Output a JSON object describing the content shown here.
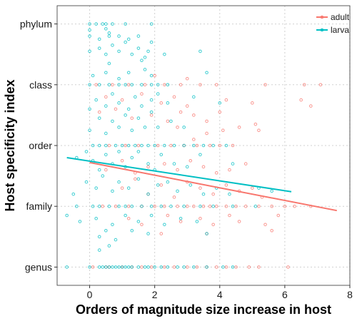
{
  "chart_data": {
    "type": "scatter",
    "title": "",
    "xlabel": "Orders of magnitude size increase in host",
    "ylabel": "Host specificity index",
    "xlim": [
      -1,
      8
    ],
    "ylim": [
      0.7,
      5.3
    ],
    "x_ticks": [
      0,
      2,
      4,
      6,
      8
    ],
    "y_categories": [
      "genus",
      "family",
      "order",
      "class",
      "phylum"
    ],
    "y_values": [
      1,
      2,
      3,
      4,
      5
    ],
    "grid": true,
    "legend_position": "top-right",
    "series": [
      {
        "name": "adult",
        "color": "#F8766D",
        "trend": {
          "x0": 0.0,
          "y0": 2.72,
          "x1": 7.6,
          "y1": 1.93
        },
        "points": [
          [
            0.1,
            1
          ],
          [
            0.5,
            1
          ],
          [
            0.6,
            1
          ],
          [
            1.0,
            1
          ],
          [
            1.3,
            1
          ],
          [
            1.6,
            1
          ],
          [
            1.9,
            1
          ],
          [
            2.3,
            1
          ],
          [
            2.6,
            1
          ],
          [
            3.0,
            1
          ],
          [
            3.3,
            1
          ],
          [
            3.6,
            1
          ],
          [
            3.9,
            1
          ],
          [
            4.2,
            1
          ],
          [
            4.5,
            1
          ],
          [
            4.9,
            1
          ],
          [
            5.2,
            1
          ],
          [
            6.1,
            1
          ],
          [
            0.4,
            2
          ],
          [
            0.8,
            2
          ],
          [
            1.2,
            2
          ],
          [
            1.6,
            2
          ],
          [
            2.0,
            2
          ],
          [
            2.3,
            2
          ],
          [
            2.7,
            2
          ],
          [
            3.0,
            2
          ],
          [
            3.2,
            2
          ],
          [
            3.5,
            2
          ],
          [
            3.7,
            2
          ],
          [
            3.9,
            2
          ],
          [
            4.2,
            2
          ],
          [
            4.5,
            2
          ],
          [
            4.8,
            2
          ],
          [
            5.2,
            2
          ],
          [
            5.6,
            2
          ],
          [
            6.0,
            2
          ],
          [
            6.3,
            2
          ],
          [
            6.8,
            2
          ],
          [
            1.2,
            1.8
          ],
          [
            1.6,
            1.7
          ],
          [
            2.4,
            1.85
          ],
          [
            2.8,
            1.75
          ],
          [
            3.4,
            1.8
          ],
          [
            3.8,
            1.7
          ],
          [
            4.3,
            1.85
          ],
          [
            4.6,
            1.75
          ],
          [
            5.4,
            1.7
          ],
          [
            5.8,
            1.85
          ],
          [
            2.2,
            1.55
          ],
          [
            3.6,
            1.55
          ],
          [
            5.6,
            1.6
          ],
          [
            1.0,
            2.3
          ],
          [
            1.4,
            2.45
          ],
          [
            1.8,
            2.2
          ],
          [
            2.2,
            2.35
          ],
          [
            2.6,
            2.15
          ],
          [
            3.0,
            2.4
          ],
          [
            3.4,
            2.3
          ],
          [
            3.8,
            2.2
          ],
          [
            4.2,
            2.35
          ],
          [
            4.6,
            2.25
          ],
          [
            5.0,
            2.3
          ],
          [
            5.3,
            2.15
          ],
          [
            0.5,
            2.6
          ],
          [
            1.0,
            2.75
          ],
          [
            1.4,
            2.55
          ],
          [
            1.8,
            2.65
          ],
          [
            2.3,
            2.7
          ],
          [
            2.7,
            2.6
          ],
          [
            3.1,
            2.75
          ],
          [
            3.5,
            2.65
          ],
          [
            3.9,
            2.55
          ],
          [
            4.3,
            2.6
          ],
          [
            4.8,
            2.7
          ],
          [
            0.6,
            3
          ],
          [
            1.1,
            3
          ],
          [
            1.5,
            3
          ],
          [
            2.1,
            3
          ],
          [
            2.5,
            3
          ],
          [
            2.9,
            3
          ],
          [
            3.3,
            3
          ],
          [
            3.7,
            3
          ],
          [
            4.0,
            3
          ],
          [
            4.4,
            3
          ],
          [
            3.2,
            3.1
          ],
          [
            2.7,
            3.3
          ],
          [
            3.6,
            3.2
          ],
          [
            4.1,
            3.25
          ],
          [
            0.3,
            3.55
          ],
          [
            0.8,
            3.6
          ],
          [
            1.3,
            3.45
          ],
          [
            1.9,
            3.5
          ],
          [
            2.4,
            3.4
          ],
          [
            2.8,
            3.55
          ],
          [
            3.2,
            3.5
          ],
          [
            3.6,
            3.4
          ],
          [
            4.0,
            3.55
          ],
          [
            4.6,
            3.3
          ],
          [
            5.1,
            3.35
          ],
          [
            5.2,
            3.25
          ],
          [
            0.5,
            3.8
          ],
          [
            1.0,
            3.75
          ],
          [
            1.6,
            3.85
          ],
          [
            2.2,
            3.7
          ],
          [
            2.6,
            3.8
          ],
          [
            3.0,
            3.65
          ],
          [
            4.2,
            3.75
          ],
          [
            5.0,
            3.7
          ],
          [
            6.5,
            3.75
          ],
          [
            6.8,
            3.65
          ],
          [
            0.2,
            4
          ],
          [
            0.7,
            4
          ],
          [
            1.2,
            4
          ],
          [
            1.7,
            4
          ],
          [
            2.3,
            4
          ],
          [
            2.8,
            4
          ],
          [
            3.4,
            4
          ],
          [
            3.9,
            4
          ],
          [
            5.4,
            4
          ],
          [
            6.6,
            4
          ],
          [
            7.1,
            4
          ],
          [
            2.0,
            4.15
          ],
          [
            3.0,
            4.1
          ]
        ]
      },
      {
        "name": "larva",
        "color": "#00BFC4",
        "trend": {
          "x0": -0.7,
          "y0": 2.8,
          "x1": 6.2,
          "y1": 2.24
        },
        "points": [
          [
            -0.7,
            1
          ],
          [
            0.0,
            1
          ],
          [
            0.3,
            1
          ],
          [
            0.4,
            1
          ],
          [
            0.5,
            1
          ],
          [
            0.6,
            1
          ],
          [
            0.7,
            1
          ],
          [
            0.8,
            1
          ],
          [
            0.9,
            1
          ],
          [
            1.0,
            1
          ],
          [
            1.1,
            1
          ],
          [
            1.2,
            1
          ],
          [
            1.3,
            1
          ],
          [
            1.5,
            1
          ],
          [
            1.7,
            1
          ],
          [
            1.8,
            1
          ],
          [
            2.0,
            1
          ],
          [
            2.2,
            1
          ],
          [
            2.4,
            1
          ],
          [
            2.7,
            1
          ],
          [
            2.9,
            1
          ],
          [
            3.2,
            1
          ],
          [
            3.6,
            1
          ],
          [
            4.1,
            1
          ],
          [
            4.4,
            1
          ],
          [
            0.3,
            1.28
          ],
          [
            0.6,
            1.35
          ],
          [
            0.3,
            1.5
          ],
          [
            0.8,
            1.45
          ],
          [
            -0.7,
            1.85
          ],
          [
            -0.4,
            2
          ],
          [
            0.1,
            2
          ],
          [
            0.3,
            2
          ],
          [
            0.6,
            2
          ],
          [
            0.9,
            2
          ],
          [
            1.1,
            2
          ],
          [
            1.3,
            2
          ],
          [
            1.6,
            2
          ],
          [
            1.9,
            2
          ],
          [
            2.2,
            2
          ],
          [
            2.5,
            2
          ],
          [
            2.9,
            2
          ],
          [
            3.4,
            2
          ],
          [
            3.8,
            2
          ],
          [
            4.4,
            2
          ],
          [
            5.1,
            2
          ],
          [
            -0.3,
            1.75
          ],
          [
            0.2,
            1.8
          ],
          [
            0.7,
            1.7
          ],
          [
            1.1,
            1.85
          ],
          [
            1.5,
            1.75
          ],
          [
            1.9,
            1.85
          ],
          [
            2.3,
            1.7
          ],
          [
            2.8,
            1.8
          ],
          [
            3.3,
            1.75
          ],
          [
            0.5,
            1.6
          ],
          [
            1.3,
            1.6
          ],
          [
            1.8,
            1.55
          ],
          [
            3.6,
            1.55
          ],
          [
            -0.5,
            2.2
          ],
          [
            -0.1,
            2.4
          ],
          [
            0.2,
            2.3
          ],
          [
            0.4,
            2.5
          ],
          [
            0.7,
            2.25
          ],
          [
            0.9,
            2.4
          ],
          [
            1.2,
            2.3
          ],
          [
            1.5,
            2.45
          ],
          [
            1.8,
            2.2
          ],
          [
            2.1,
            2.35
          ],
          [
            2.4,
            2.4
          ],
          [
            2.7,
            2.25
          ],
          [
            3.1,
            2.35
          ],
          [
            3.5,
            2.2
          ],
          [
            3.9,
            2.3
          ],
          [
            4.3,
            2.2
          ],
          [
            5.2,
            2.3
          ],
          [
            5.6,
            2.25
          ],
          [
            -0.4,
            2.8
          ],
          [
            -0.1,
            2.9
          ],
          [
            0.1,
            2.75
          ],
          [
            0.3,
            2.6
          ],
          [
            0.5,
            2.85
          ],
          [
            0.7,
            2.7
          ],
          [
            0.9,
            2.9
          ],
          [
            1.1,
            2.65
          ],
          [
            1.3,
            2.8
          ],
          [
            1.5,
            2.9
          ],
          [
            1.8,
            2.7
          ],
          [
            2.0,
            2.6
          ],
          [
            2.2,
            2.85
          ],
          [
            2.6,
            2.7
          ],
          [
            3.0,
            2.65
          ],
          [
            3.4,
            2.85
          ],
          [
            4.4,
            2.7
          ],
          [
            0.1,
            3
          ],
          [
            0.3,
            3
          ],
          [
            0.5,
            3
          ],
          [
            0.8,
            3
          ],
          [
            1.0,
            3
          ],
          [
            1.2,
            3
          ],
          [
            1.4,
            3
          ],
          [
            1.6,
            3
          ],
          [
            1.8,
            3
          ],
          [
            2.0,
            3
          ],
          [
            2.3,
            3
          ],
          [
            2.6,
            3
          ],
          [
            2.9,
            3
          ],
          [
            3.2,
            3
          ],
          [
            3.5,
            3
          ],
          [
            3.8,
            3
          ],
          [
            4.2,
            3
          ],
          [
            0.0,
            3.25
          ],
          [
            0.3,
            3.45
          ],
          [
            0.5,
            3.2
          ],
          [
            0.7,
            3.4
          ],
          [
            0.9,
            3.3
          ],
          [
            1.1,
            3.5
          ],
          [
            1.3,
            3.25
          ],
          [
            1.5,
            3.45
          ],
          [
            1.7,
            3.3
          ],
          [
            1.9,
            3.55
          ],
          [
            2.1,
            3.3
          ],
          [
            2.5,
            3.4
          ],
          [
            2.9,
            3.3
          ],
          [
            0.0,
            3.6
          ],
          [
            0.2,
            3.75
          ],
          [
            0.5,
            3.65
          ],
          [
            0.7,
            3.85
          ],
          [
            0.9,
            3.7
          ],
          [
            1.2,
            3.6
          ],
          [
            1.4,
            3.8
          ],
          [
            1.6,
            3.65
          ],
          [
            1.9,
            3.75
          ],
          [
            2.1,
            3.85
          ],
          [
            2.4,
            3.7
          ],
          [
            3.2,
            3.8
          ],
          [
            4.0,
            3.7
          ],
          [
            0.0,
            4
          ],
          [
            0.3,
            4
          ],
          [
            0.6,
            4
          ],
          [
            0.9,
            4
          ],
          [
            1.1,
            4
          ],
          [
            1.3,
            4
          ],
          [
            1.6,
            4
          ],
          [
            1.9,
            4
          ],
          [
            2.1,
            4
          ],
          [
            2.4,
            4
          ],
          [
            0.1,
            4.15
          ],
          [
            0.5,
            4.2
          ],
          [
            0.9,
            4.1
          ],
          [
            1.2,
            4.2
          ],
          [
            1.7,
            4.25
          ],
          [
            1.9,
            4.15
          ],
          [
            3.6,
            4.2
          ],
          [
            0.6,
            4.35
          ],
          [
            1.6,
            4.4
          ],
          [
            1.7,
            4.45
          ],
          [
            0.0,
            4.55
          ],
          [
            0.3,
            4.6
          ],
          [
            0.5,
            4.5
          ],
          [
            0.7,
            4.65
          ],
          [
            0.9,
            4.55
          ],
          [
            1.1,
            4.7
          ],
          [
            1.3,
            4.5
          ],
          [
            1.5,
            4.6
          ],
          [
            1.8,
            4.55
          ],
          [
            2.3,
            4.5
          ],
          [
            3.4,
            4.55
          ],
          [
            0.0,
            4.8
          ],
          [
            0.3,
            4.75
          ],
          [
            0.6,
            4.85
          ],
          [
            0.9,
            4.8
          ],
          [
            1.2,
            4.75
          ],
          [
            1.5,
            4.8
          ],
          [
            1.9,
            4.7
          ],
          [
            0.0,
            5
          ],
          [
            0.2,
            5
          ],
          [
            0.4,
            5
          ],
          [
            0.5,
            5
          ],
          [
            0.7,
            5
          ],
          [
            1.1,
            5
          ],
          [
            1.9,
            5
          ],
          [
            0.0,
            4.9
          ],
          [
            0.5,
            4.92
          ],
          [
            0.6,
            4.8
          ]
        ]
      }
    ]
  }
}
